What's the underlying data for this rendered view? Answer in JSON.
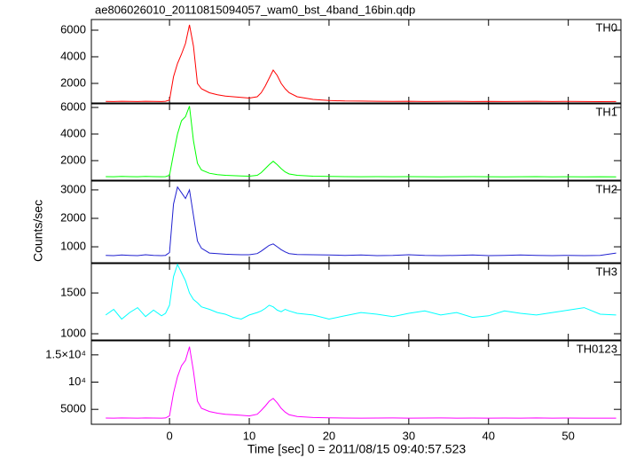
{
  "title": "ae806026010_20110815094057_wam0_bst_4band_16bin.qdp",
  "xlabel": "Time [sec] 0 = 2011/08/15 09:40:57.523",
  "ylabel": "Counts/sec",
  "chart_data": [
    {
      "type": "line",
      "ylim": [
        530,
        6800
      ],
      "yticks": [
        2000,
        4000,
        6000
      ],
      "x": [
        -8,
        -7,
        -6,
        -5,
        -4,
        -3,
        -2,
        -1,
        -0.5,
        0,
        0.5,
        1,
        1.5,
        2,
        2.5,
        3,
        3.5,
        4,
        5,
        6,
        7,
        8,
        9,
        10,
        11,
        11.5,
        12,
        12.5,
        13,
        13.5,
        14,
        14.5,
        15,
        16,
        18,
        20,
        22,
        24,
        26,
        28,
        30,
        32,
        34,
        36,
        38,
        40,
        42,
        44,
        46,
        48,
        50,
        52,
        54,
        56
      ],
      "series": [
        {
          "name": "TH0",
          "color": "#ff0000",
          "values": [
            650,
            640,
            660,
            650,
            640,
            660,
            650,
            640,
            660,
            750,
            2500,
            3500,
            4200,
            5000,
            6400,
            4800,
            2000,
            1600,
            1300,
            1150,
            1050,
            1000,
            950,
            900,
            1000,
            1300,
            1800,
            2400,
            3000,
            2600,
            2000,
            1600,
            1300,
            1000,
            800,
            720,
            680,
            670,
            660,
            650,
            660,
            640,
            650,
            660,
            640,
            650,
            640,
            650,
            660,
            640,
            650,
            640,
            630,
            640
          ]
        }
      ]
    },
    {
      "type": "line",
      "ylim": [
        530,
        6270
      ],
      "yticks": [
        2000,
        4000,
        6000
      ],
      "x": [
        -8,
        -7,
        -6,
        -5,
        -4,
        -3,
        -2,
        -1,
        -0.5,
        0,
        0.5,
        1,
        1.5,
        2,
        2.5,
        3,
        3.5,
        4,
        5,
        6,
        7,
        8,
        9,
        10,
        11,
        11.5,
        12,
        12.5,
        13,
        13.5,
        14,
        14.5,
        15,
        16,
        18,
        20,
        22,
        24,
        26,
        28,
        30,
        32,
        34,
        36,
        38,
        40,
        42,
        44,
        46,
        48,
        50,
        52,
        54,
        56
      ],
      "series": [
        {
          "name": "TH1",
          "color": "#00ff00",
          "values": [
            800,
            790,
            810,
            800,
            790,
            810,
            800,
            790,
            800,
            900,
            2500,
            4000,
            5000,
            5300,
            6100,
            3500,
            1800,
            1300,
            1050,
            950,
            900,
            870,
            850,
            830,
            900,
            1100,
            1400,
            1700,
            1950,
            1700,
            1400,
            1150,
            1000,
            900,
            830,
            810,
            800,
            790,
            800,
            790,
            800,
            790,
            780,
            790,
            800,
            790,
            780,
            790,
            800,
            780,
            790,
            780,
            790,
            780
          ]
        }
      ]
    },
    {
      "type": "line",
      "ylim": [
        440,
        3310
      ],
      "yticks": [
        1000,
        2000,
        3000
      ],
      "x": [
        -8,
        -7,
        -6,
        -5,
        -4,
        -3,
        -2,
        -1,
        -0.5,
        0,
        0.5,
        1,
        1.5,
        2,
        2.5,
        3,
        3.5,
        4,
        5,
        6,
        7,
        8,
        9,
        10,
        11,
        11.5,
        12,
        12.5,
        13,
        13.5,
        14,
        14.5,
        15,
        16,
        18,
        20,
        22,
        24,
        26,
        28,
        30,
        32,
        34,
        36,
        38,
        40,
        42,
        44,
        46,
        48,
        50,
        52,
        54,
        56
      ],
      "series": [
        {
          "name": "TH2",
          "color": "#2020d0",
          "values": [
            700,
            690,
            710,
            700,
            690,
            720,
            700,
            690,
            700,
            800,
            2500,
            3100,
            2900,
            2700,
            3000,
            2100,
            1200,
            950,
            780,
            760,
            740,
            730,
            720,
            720,
            760,
            850,
            950,
            1050,
            1100,
            1000,
            900,
            820,
            760,
            730,
            720,
            710,
            700,
            710,
            690,
            700,
            720,
            700,
            690,
            700,
            710,
            690,
            700,
            710,
            700,
            690,
            700,
            690,
            700,
            780
          ]
        }
      ]
    },
    {
      "type": "line",
      "ylim": [
        924,
        1860
      ],
      "yticks": [
        1000,
        1500
      ],
      "x": [
        -8,
        -7,
        -6,
        -5,
        -4,
        -3,
        -2,
        -1,
        -0.5,
        0,
        0.5,
        1,
        1.5,
        2,
        2.5,
        3,
        3.5,
        4,
        5,
        6,
        7,
        8,
        9,
        10,
        11,
        11.5,
        12,
        12.5,
        13,
        13.5,
        14,
        14.5,
        15,
        16,
        18,
        20,
        22,
        24,
        26,
        28,
        30,
        32,
        34,
        36,
        38,
        40,
        42,
        44,
        46,
        48,
        50,
        52,
        54,
        56
      ],
      "series": [
        {
          "name": "TH3",
          "color": "#00ffff",
          "values": [
            1230,
            1300,
            1180,
            1260,
            1320,
            1210,
            1290,
            1220,
            1250,
            1350,
            1700,
            1850,
            1750,
            1650,
            1500,
            1420,
            1380,
            1330,
            1300,
            1260,
            1240,
            1200,
            1180,
            1230,
            1260,
            1280,
            1310,
            1350,
            1330,
            1290,
            1270,
            1300,
            1280,
            1250,
            1230,
            1180,
            1220,
            1260,
            1240,
            1210,
            1250,
            1280,
            1230,
            1260,
            1200,
            1220,
            1280,
            1250,
            1230,
            1260,
            1290,
            1320,
            1240,
            1230
          ]
        }
      ]
    },
    {
      "type": "line",
      "ylim": [
        2260,
        17580
      ],
      "yticks": [
        5000,
        {
          "value": 10000,
          "label": "10⁴"
        },
        {
          "value": 15000,
          "label": "1.5×10⁴"
        }
      ],
      "xlim": [
        -9.8,
        56.6
      ],
      "xticks": [
        0,
        10,
        20,
        30,
        40,
        50
      ],
      "x": [
        -8,
        -7,
        -6,
        -5,
        -4,
        -3,
        -2,
        -1,
        -0.5,
        0,
        0.5,
        1,
        1.5,
        2,
        2.5,
        3,
        3.5,
        4,
        5,
        6,
        7,
        8,
        9,
        10,
        11,
        11.5,
        12,
        12.5,
        13,
        13.5,
        14,
        14.5,
        15,
        16,
        18,
        20,
        22,
        24,
        26,
        28,
        30,
        32,
        34,
        36,
        38,
        40,
        42,
        44,
        46,
        48,
        50,
        52,
        54,
        56
      ],
      "series": [
        {
          "name": "TH0123",
          "color": "#ff00ff",
          "values": [
            3400,
            3380,
            3420,
            3400,
            3390,
            3410,
            3400,
            3380,
            3420,
            3800,
            8000,
            11000,
            13000,
            14000,
            16500,
            12000,
            6500,
            5200,
            4600,
            4300,
            4100,
            4000,
            3900,
            3800,
            4100,
            4800,
            5600,
            6500,
            7000,
            6200,
            5200,
            4500,
            4000,
            3700,
            3500,
            3450,
            3400,
            3380,
            3400,
            3420,
            3390,
            3400,
            3410,
            3380,
            3400,
            3390,
            3400,
            3380,
            3410,
            3390,
            3400,
            3380,
            3390,
            3380
          ]
        }
      ]
    }
  ]
}
